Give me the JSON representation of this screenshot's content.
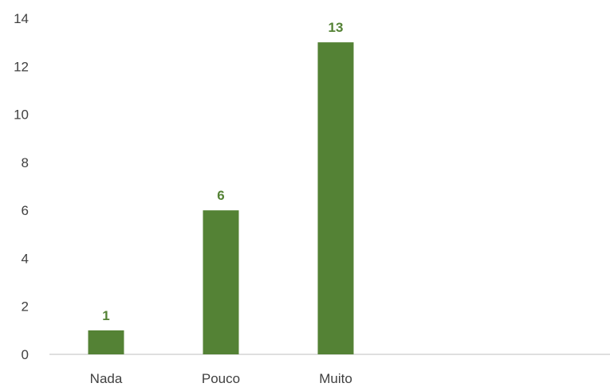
{
  "chart_data": {
    "type": "bar",
    "title": "",
    "xlabel": "",
    "ylabel": "",
    "categories": [
      "Nada",
      "Pouco",
      "Muito"
    ],
    "values": [
      1,
      6,
      13
    ],
    "data_labels": [
      "1",
      "6",
      "13"
    ],
    "ylim": [
      0,
      14
    ],
    "yticks": [
      "0",
      "2",
      "4",
      "6",
      "8",
      "10",
      "12",
      "14"
    ],
    "grid": false,
    "legend": "none",
    "bar_color": "#548235",
    "label_color": "#548235",
    "axis_color": "#bfbfbf",
    "text_color": "#404040"
  }
}
